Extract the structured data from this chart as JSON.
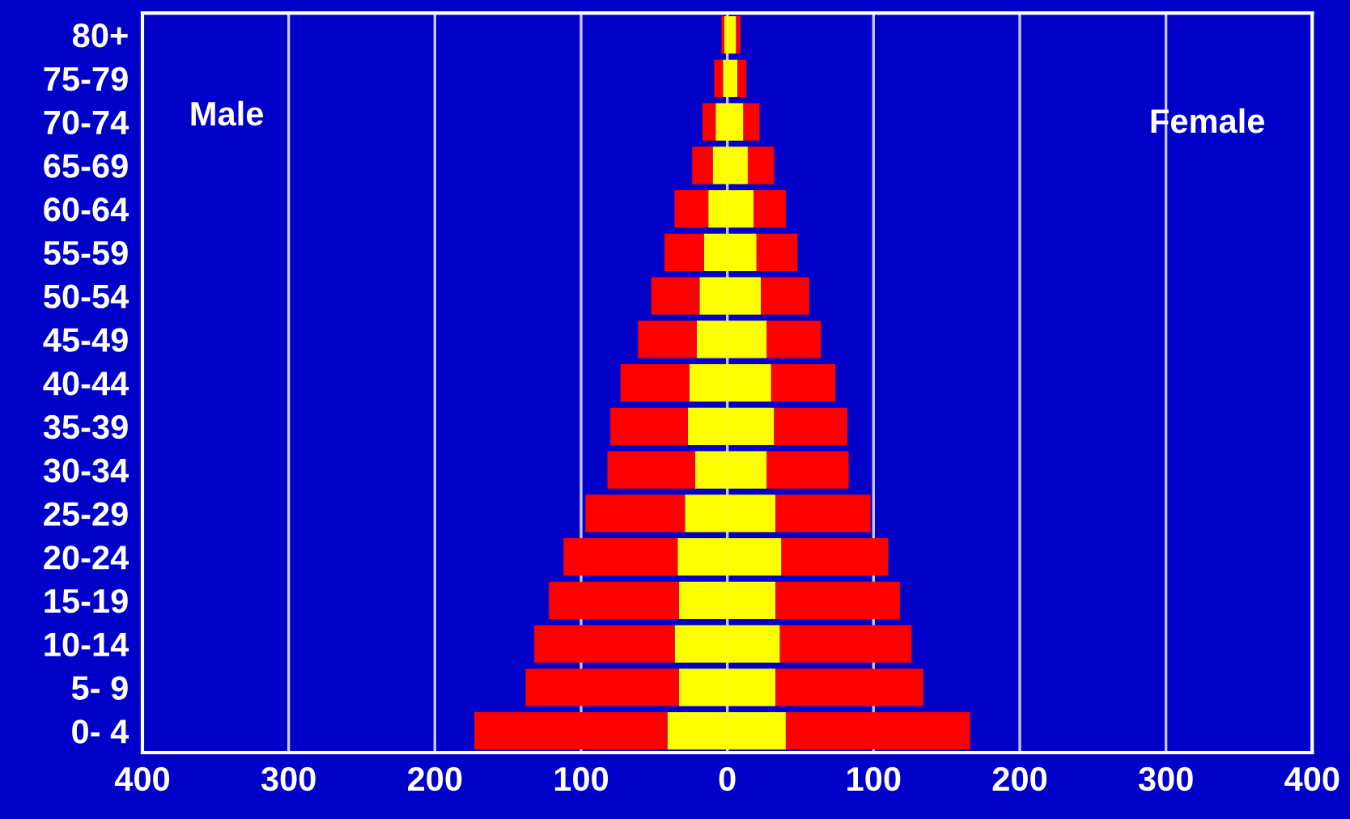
{
  "chart_data": {
    "type": "bar",
    "orientation": "horizontal",
    "stacked": true,
    "categories": [
      "80+",
      "75-79",
      "70-74",
      "65-69",
      "60-64",
      "55-59",
      "50-54",
      "45-49",
      "40-44",
      "35-39",
      "30-34",
      "25-29",
      "20-24",
      "15-19",
      "10-14",
      "5- 9",
      "0- 4"
    ],
    "series": [
      {
        "color": "#ffff00",
        "values": [
          -2,
          -3,
          -8,
          -10,
          -13,
          -16,
          -19,
          -21,
          -26,
          -27,
          -22,
          -29,
          -34,
          -33,
          -36,
          -33,
          -41
        ]
      },
      {
        "color": "#ff0000",
        "values": [
          -2,
          -6,
          -9,
          -14,
          -23,
          -27,
          -33,
          -40,
          -47,
          -53,
          -60,
          -68,
          -78,
          -89,
          -96,
          -105,
          -132
        ]
      },
      {
        "color": "#ffff00",
        "values": [
          6,
          7,
          11,
          14,
          18,
          20,
          23,
          27,
          30,
          32,
          27,
          33,
          37,
          33,
          36,
          33,
          40
        ]
      },
      {
        "color": "#ff0000",
        "values": [
          3,
          6,
          11,
          18,
          22,
          28,
          33,
          37,
          44,
          50,
          56,
          65,
          73,
          85,
          90,
          101,
          126
        ]
      }
    ],
    "xlim": [
      -400,
      400
    ],
    "xticks": [
      {
        "value": -400,
        "label": "400"
      },
      {
        "value": -300,
        "label": "300"
      },
      {
        "value": -200,
        "label": "200"
      },
      {
        "value": -100,
        "label": "100"
      },
      0,
      100,
      200,
      300,
      400
    ],
    "grid": "x",
    "annotations": [
      "Male",
      "Female"
    ]
  }
}
